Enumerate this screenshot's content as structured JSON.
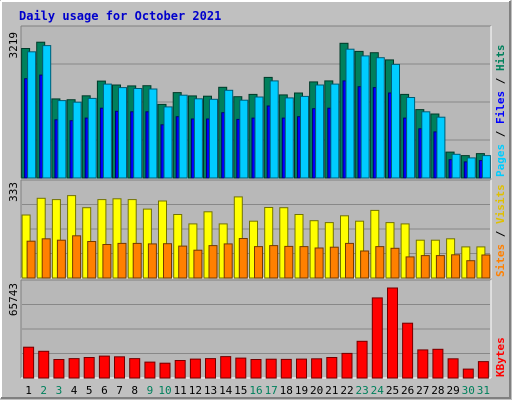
{
  "title": "Daily usage for October 2021",
  "colors": {
    "background": "#c0c0c0",
    "plot_background": "#b8b8b8",
    "title": "#0000cc",
    "hits": "#00805c",
    "files": "#0000ff",
    "pages": "#00ccff",
    "visits": "#ffff00",
    "sites": "#ff8000",
    "kbytes": "#ff0000",
    "weekend": "#00805c",
    "weekday": "#000000"
  },
  "chart_data": [
    {
      "type": "bar",
      "panel": "hits-files-pages",
      "categories": [
        "1",
        "2",
        "3",
        "4",
        "5",
        "6",
        "7",
        "8",
        "9",
        "10",
        "11",
        "12",
        "13",
        "14",
        "15",
        "16",
        "17",
        "18",
        "19",
        "20",
        "21",
        "22",
        "23",
        "24",
        "25",
        "26",
        "27",
        "28",
        "29",
        "30",
        "31"
      ],
      "weekend_days": [
        "2",
        "3",
        "9",
        "10",
        "16",
        "17",
        "23",
        "24",
        "30",
        "31"
      ],
      "ymax_label": "3219",
      "ylim": [
        0,
        3219
      ],
      "series": [
        {
          "name": "Hits",
          "values": [
            2894,
            3035,
            1769,
            1750,
            1838,
            2166,
            2078,
            2058,
            2063,
            1646,
            1908,
            1836,
            1829,
            2028,
            1818,
            1868,
            2248,
            1858,
            1899,
            2149,
            2170,
            3012,
            2830,
            2800,
            2640,
            1868,
            1530,
            1430,
            578,
            500,
            545
          ]
        },
        {
          "name": "Files",
          "values": [
            2220,
            2300,
            1300,
            1280,
            1340,
            1560,
            1490,
            1480,
            1480,
            1190,
            1370,
            1320,
            1320,
            1460,
            1310,
            1340,
            1610,
            1340,
            1370,
            1550,
            1560,
            2170,
            2040,
            2020,
            1900,
            1340,
            1100,
            1030,
            410,
            360,
            390
          ]
        },
        {
          "name": "Pages",
          "values": [
            2820,
            2960,
            1730,
            1695,
            1780,
            2100,
            2020,
            2000,
            1990,
            1590,
            1850,
            1770,
            1760,
            1960,
            1740,
            1810,
            2170,
            1790,
            1825,
            2080,
            2100,
            2880,
            2730,
            2690,
            2540,
            1800,
            1480,
            1360,
            530,
            450,
            500
          ]
        }
      ]
    },
    {
      "type": "bar",
      "panel": "visits-sites",
      "categories": [
        "1",
        "2",
        "3",
        "4",
        "5",
        "6",
        "7",
        "8",
        "9",
        "10",
        "11",
        "12",
        "13",
        "14",
        "15",
        "16",
        "17",
        "18",
        "19",
        "20",
        "21",
        "22",
        "23",
        "24",
        "25",
        "26",
        "27",
        "28",
        "29",
        "30",
        "31"
      ],
      "ymax_label": "333",
      "ylim": [
        0,
        333
      ],
      "series": [
        {
          "name": "Visits",
          "values": [
            233,
            295,
            290,
            305,
            260,
            290,
            293,
            290,
            255,
            285,
            235,
            200,
            245,
            200,
            300,
            210,
            261,
            260,
            235,
            212,
            205,
            230,
            210,
            250,
            205,
            200,
            140,
            140,
            145,
            115,
            115
          ]
        },
        {
          "name": "Sites",
          "values": [
            136,
            145,
            140,
            156,
            135,
            124,
            128,
            128,
            126,
            127,
            118,
            103,
            120,
            126,
            146,
            116,
            120,
            117,
            116,
            111,
            114,
            128,
            100,
            116,
            110,
            78,
            83,
            83,
            86,
            64,
            85
          ]
        }
      ]
    },
    {
      "type": "bar",
      "panel": "kbytes",
      "categories": [
        "1",
        "2",
        "3",
        "4",
        "5",
        "6",
        "7",
        "8",
        "9",
        "10",
        "11",
        "12",
        "13",
        "14",
        "15",
        "16",
        "17",
        "18",
        "19",
        "20",
        "21",
        "22",
        "23",
        "24",
        "25",
        "26",
        "27",
        "28",
        "29",
        "30",
        "31"
      ],
      "ymax_label": "65743",
      "ylim": [
        0,
        65743
      ],
      "series": [
        {
          "name": "KBytes",
          "values": [
            22500,
            19500,
            13500,
            14200,
            15000,
            16000,
            15500,
            14200,
            11600,
            10800,
            12800,
            13800,
            14200,
            15600,
            14500,
            13500,
            13700,
            13600,
            13800,
            14000,
            15000,
            18000,
            26800,
            58500,
            65743,
            40000,
            20500,
            21000,
            14000,
            6500,
            12000
          ]
        }
      ]
    }
  ],
  "axis_titles": {
    "top": [
      {
        "text": "Hits",
        "color": "#00805c"
      },
      {
        "text": "Files",
        "color": "#0000ff"
      },
      {
        "text": "Pages",
        "color": "#00ccff"
      }
    ],
    "middle": [
      {
        "text": "Visits",
        "color": "#e0c000"
      },
      {
        "text": "Sites",
        "color": "#ff8000"
      }
    ],
    "bottom": [
      {
        "text": "KBytes",
        "color": "#ff0000"
      }
    ]
  }
}
